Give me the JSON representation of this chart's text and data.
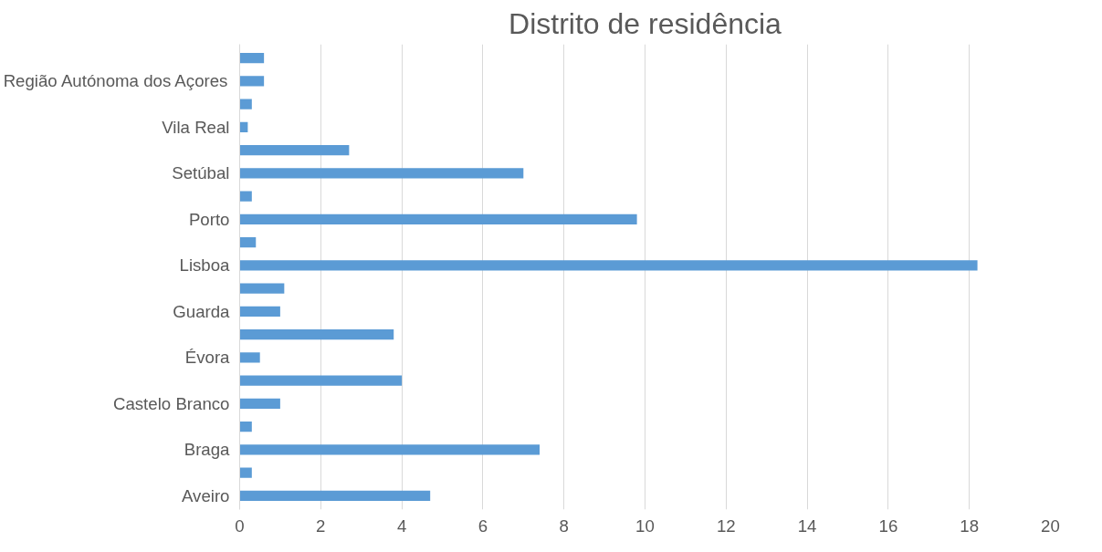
{
  "chart_data": {
    "type": "bar",
    "orientation": "horizontal",
    "title": "Distrito de residência",
    "categories": [
      null,
      "Região Autónoma dos Açores",
      null,
      "Vila Real",
      null,
      "Setúbal",
      null,
      "Porto",
      null,
      "Lisboa",
      null,
      "Guarda",
      null,
      "Évora",
      null,
      "Castelo Branco",
      null,
      "Braga",
      null,
      "Aveiro"
    ],
    "values": [
      0.6,
      0.6,
      0.3,
      0.2,
      2.7,
      7.0,
      0.3,
      9.8,
      0.4,
      18.2,
      1.1,
      1.0,
      3.8,
      0.5,
      4.0,
      1.0,
      0.3,
      7.4,
      0.3,
      4.7
    ],
    "color": "#5b9bd5",
    "xlim": [
      0,
      20
    ],
    "xticks": [
      0,
      2,
      4,
      6,
      8,
      10,
      12,
      14,
      16,
      18,
      20
    ],
    "grid": "x"
  }
}
